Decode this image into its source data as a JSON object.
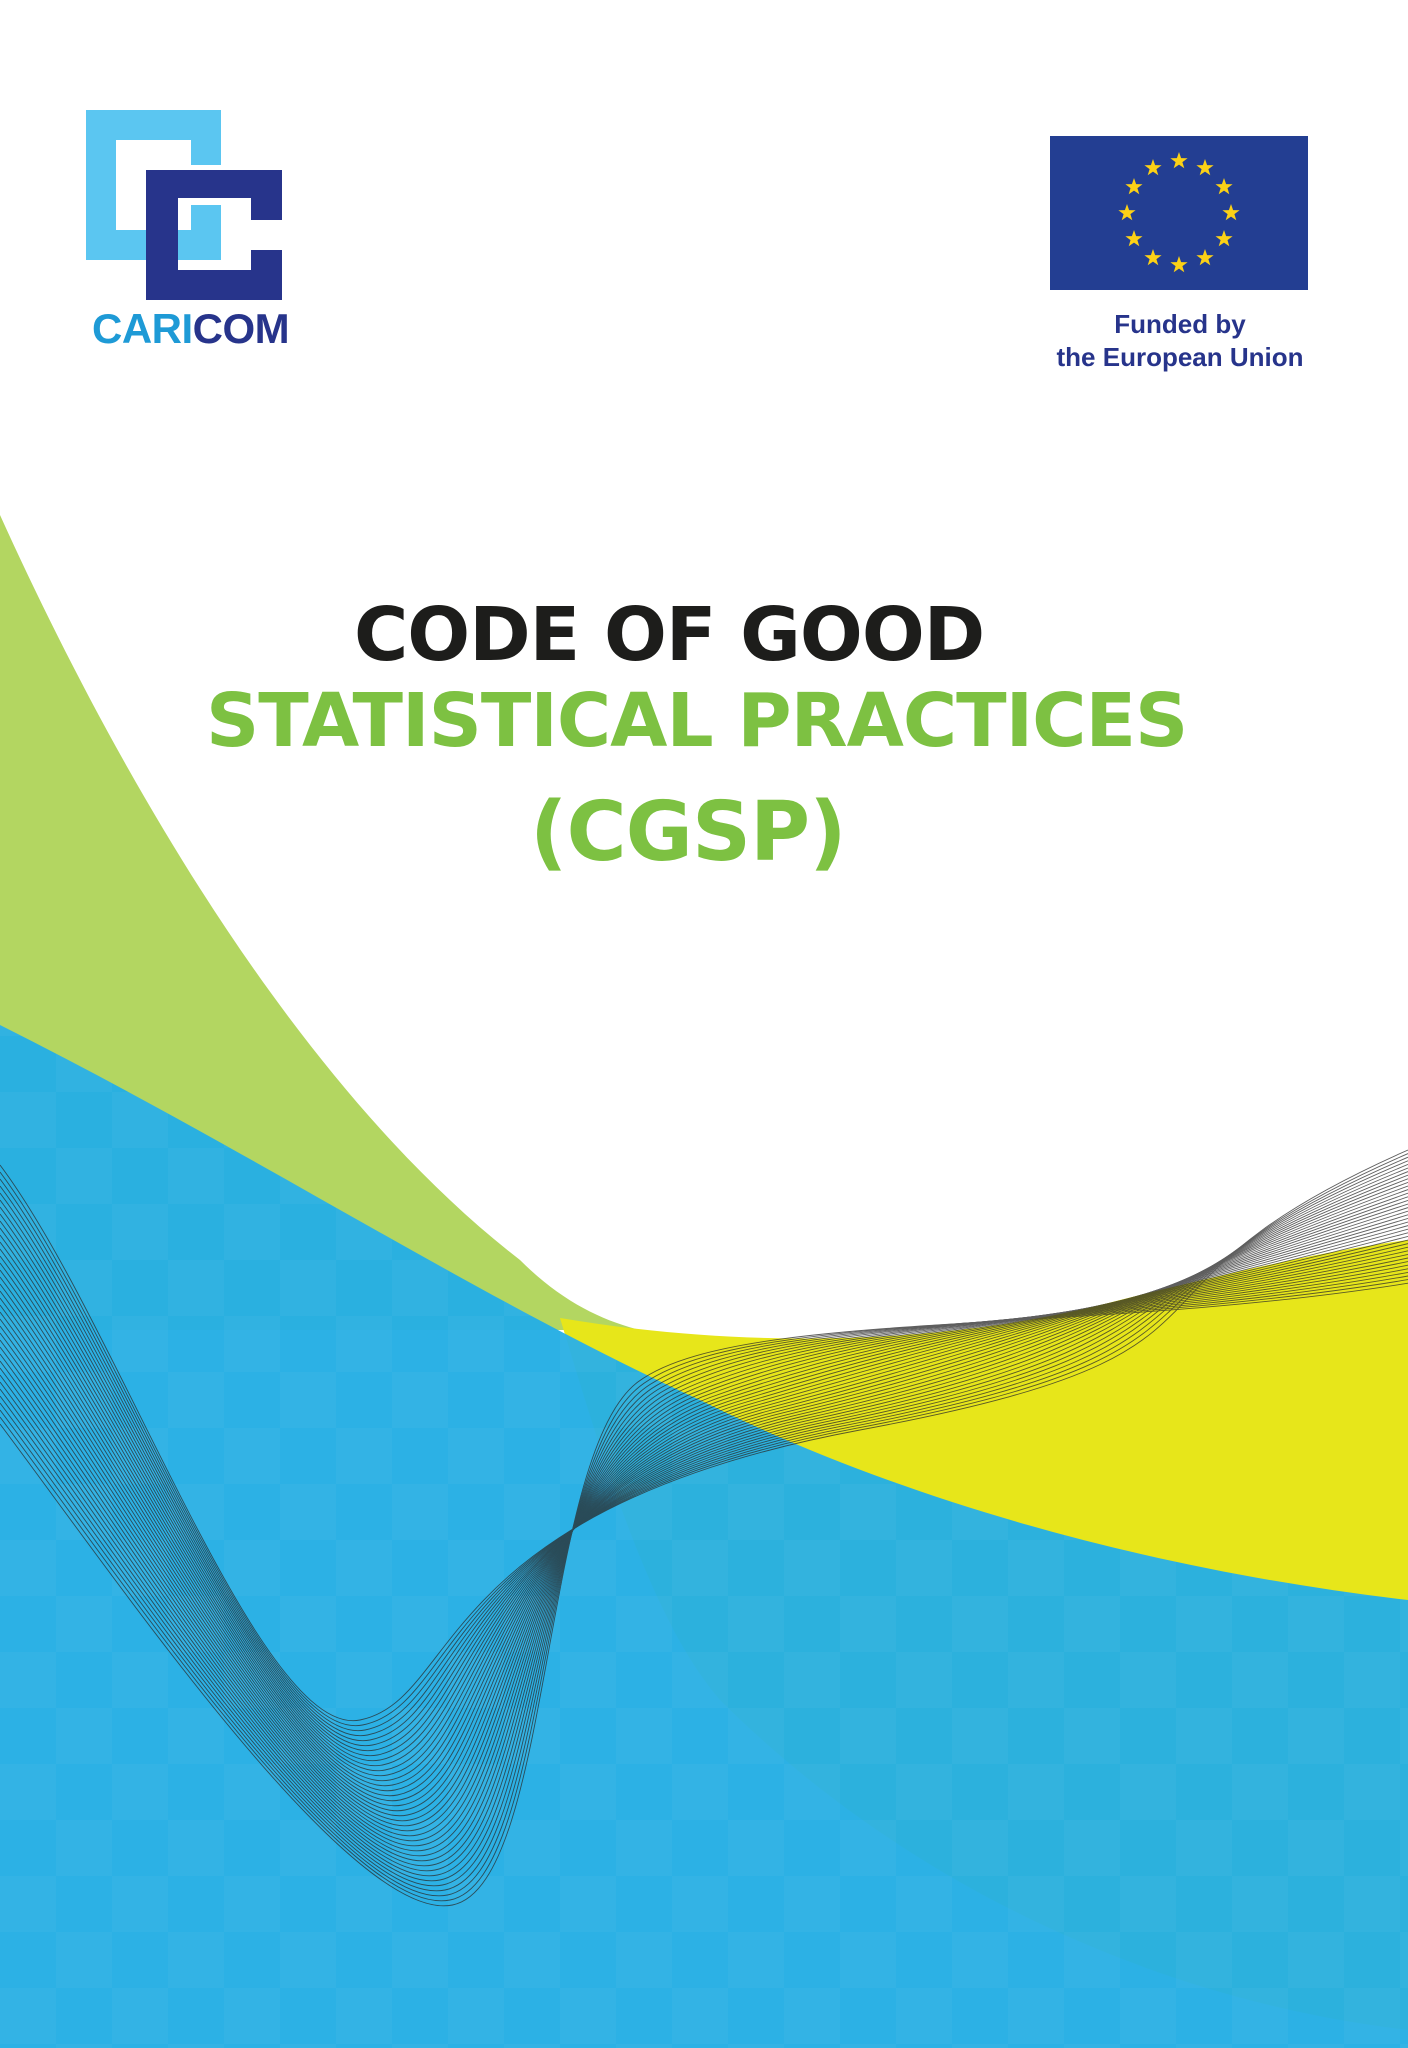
{
  "logos": {
    "caricom": {
      "part_a": "CARI",
      "part_b": "COM"
    },
    "eu": {
      "caption_line1": "Funded by",
      "caption_line2": "the European Union"
    }
  },
  "title": {
    "line1": "CODE OF GOOD",
    "line2": "STATISTICAL PRACTICES",
    "line3": "(CGSP)"
  },
  "colors": {
    "title_dark": "#1d1d1b",
    "title_green": "#7dc142",
    "caricom_light_blue": "#5bc6f1",
    "caricom_dark_blue": "#27348b",
    "eu_blue": "#233e92",
    "eu_star": "#fcd116",
    "wave_blue": "#25aee4",
    "wave_green": "#b3d661",
    "wave_yellow": "#e7e61a"
  }
}
